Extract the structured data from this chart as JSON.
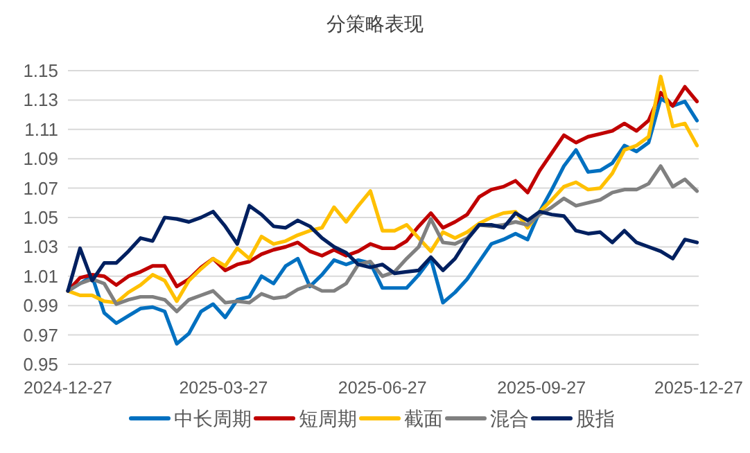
{
  "chart_data": {
    "type": "line",
    "title": "分策略表现",
    "x": [
      "2024-12-27",
      "2025-01-03",
      "2025-01-10",
      "2025-01-17",
      "2025-01-24",
      "2025-01-31",
      "2025-02-07",
      "2025-02-14",
      "2025-02-21",
      "2025-02-28",
      "2025-03-07",
      "2025-03-14",
      "2025-03-21",
      "2025-03-28",
      "2025-04-04",
      "2025-04-11",
      "2025-04-18",
      "2025-04-25",
      "2025-05-02",
      "2025-05-09",
      "2025-05-16",
      "2025-05-23",
      "2025-05-30",
      "2025-06-06",
      "2025-06-13",
      "2025-06-20",
      "2025-06-27",
      "2025-07-04",
      "2025-07-11",
      "2025-07-18",
      "2025-07-25",
      "2025-08-01",
      "2025-08-08",
      "2025-08-15",
      "2025-08-22",
      "2025-08-29",
      "2025-09-05",
      "2025-09-12",
      "2025-09-19",
      "2025-09-26",
      "2025-10-03",
      "2025-10-10",
      "2025-10-17",
      "2025-10-24",
      "2025-10-31",
      "2025-11-07",
      "2025-11-14",
      "2025-11-21",
      "2025-11-28",
      "2025-12-05",
      "2025-12-12",
      "2025-12-19",
      "2025-12-26"
    ],
    "series": [
      {
        "name": "中长周期",
        "color": "#0070c0",
        "values": [
          1.0,
          1.005,
          1.01,
          0.985,
          0.978,
          0.983,
          0.988,
          0.989,
          0.986,
          0.964,
          0.971,
          0.986,
          0.991,
          0.982,
          0.994,
          0.996,
          1.01,
          1.005,
          1.017,
          1.022,
          1.003,
          1.011,
          1.021,
          1.018,
          1.021,
          1.019,
          1.002,
          1.002,
          1.002,
          1.011,
          1.022,
          0.992,
          0.999,
          1.008,
          1.02,
          1.032,
          1.035,
          1.039,
          1.035,
          1.054,
          1.069,
          1.085,
          1.096,
          1.081,
          1.082,
          1.087,
          1.099,
          1.095,
          1.101,
          1.131,
          1.126,
          1.129,
          1.116
        ]
      },
      {
        "name": "短周期",
        "color": "#c00000",
        "values": [
          1.0,
          1.009,
          1.011,
          1.01,
          1.004,
          1.01,
          1.013,
          1.017,
          1.017,
          1.003,
          1.008,
          1.016,
          1.022,
          1.014,
          1.018,
          1.02,
          1.025,
          1.028,
          1.03,
          1.033,
          1.027,
          1.024,
          1.028,
          1.024,
          1.027,
          1.032,
          1.029,
          1.029,
          1.034,
          1.044,
          1.053,
          1.043,
          1.047,
          1.052,
          1.064,
          1.069,
          1.071,
          1.075,
          1.067,
          1.082,
          1.094,
          1.106,
          1.101,
          1.105,
          1.107,
          1.109,
          1.114,
          1.109,
          1.116,
          1.135,
          1.126,
          1.139,
          1.129
        ]
      },
      {
        "name": "截面",
        "color": "#ffc000",
        "values": [
          1.0,
          0.997,
          0.997,
          0.993,
          0.992,
          0.999,
          1.004,
          1.011,
          1.007,
          0.993,
          1.007,
          1.015,
          1.022,
          1.017,
          1.029,
          1.022,
          1.037,
          1.032,
          1.034,
          1.038,
          1.041,
          1.043,
          1.057,
          1.047,
          1.058,
          1.068,
          1.041,
          1.041,
          1.045,
          1.036,
          1.027,
          1.04,
          1.036,
          1.04,
          1.046,
          1.05,
          1.053,
          1.054,
          1.043,
          1.054,
          1.062,
          1.071,
          1.074,
          1.069,
          1.07,
          1.08,
          1.096,
          1.099,
          1.105,
          1.146,
          1.112,
          1.114,
          1.099
        ]
      },
      {
        "name": "混合",
        "color": "#808080",
        "values": [
          1.0,
          1.005,
          1.008,
          1.005,
          0.991,
          0.994,
          0.996,
          0.996,
          0.994,
          0.986,
          0.994,
          0.997,
          1.0,
          0.992,
          0.993,
          0.992,
          0.998,
          0.995,
          0.996,
          1.001,
          1.004,
          1.0,
          1.0,
          1.005,
          1.018,
          1.02,
          1.01,
          1.013,
          1.022,
          1.03,
          1.049,
          1.033,
          1.032,
          1.036,
          1.045,
          1.044,
          1.045,
          1.047,
          1.045,
          1.052,
          1.057,
          1.063,
          1.058,
          1.06,
          1.062,
          1.067,
          1.069,
          1.069,
          1.073,
          1.085,
          1.071,
          1.076,
          1.068
        ]
      },
      {
        "name": "股指",
        "color": "#002060",
        "values": [
          1.0,
          1.029,
          1.007,
          1.019,
          1.019,
          1.027,
          1.036,
          1.034,
          1.05,
          1.049,
          1.047,
          1.05,
          1.054,
          1.044,
          1.032,
          1.058,
          1.052,
          1.044,
          1.043,
          1.048,
          1.044,
          1.036,
          1.03,
          1.026,
          1.018,
          1.016,
          1.018,
          1.012,
          1.013,
          1.014,
          1.023,
          1.014,
          1.022,
          1.035,
          1.045,
          1.045,
          1.043,
          1.053,
          1.048,
          1.054,
          1.052,
          1.051,
          1.041,
          1.039,
          1.04,
          1.033,
          1.041,
          1.033,
          1.03,
          1.027,
          1.022,
          1.035,
          1.033
        ]
      }
    ],
    "xlim": [
      "2024-12-27",
      "2025-12-27"
    ],
    "xticks": [
      "2024-12-27",
      "2025-03-27",
      "2025-06-27",
      "2025-09-27",
      "2025-12-27"
    ],
    "ylim": [
      0.95,
      1.15
    ],
    "yticks": [
      0.95,
      0.97,
      0.99,
      1.01,
      1.03,
      1.05,
      1.07,
      1.09,
      1.11,
      1.13,
      1.15
    ],
    "grid": "y",
    "legend": "bottom",
    "marker": "none",
    "line_style": "solid"
  }
}
